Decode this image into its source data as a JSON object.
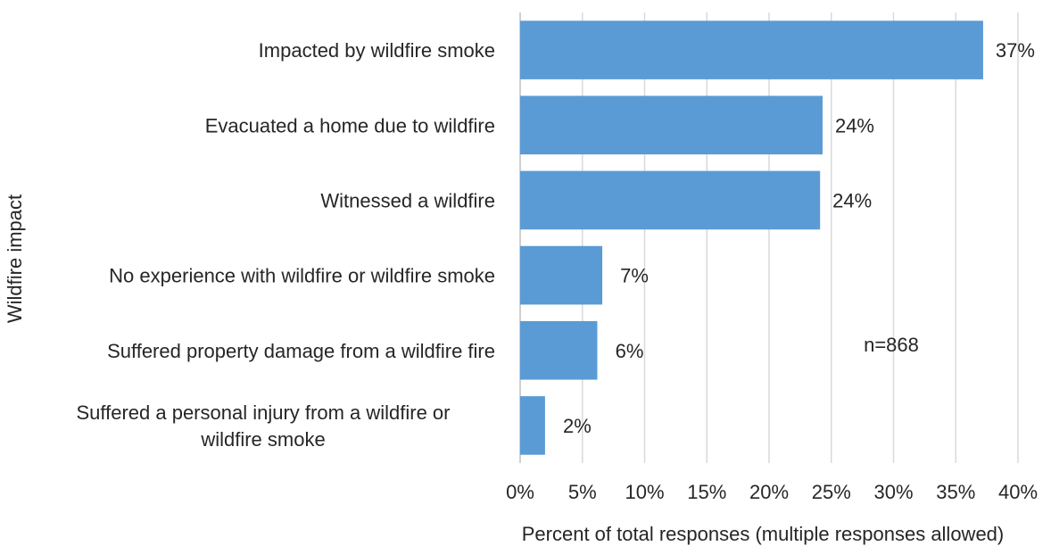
{
  "chart_data": {
    "type": "bar",
    "orientation": "horizontal",
    "categories": [
      "Impacted by wildfire smoke",
      "Evacuated a home due to wildfire",
      "Witnessed a wildfire",
      "No experience with wildfire or wildfire smoke",
      "Suffered property damage from a wildfire fire",
      [
        "Suffered a personal injury from a wildfire or",
        "wildfire smoke"
      ]
    ],
    "values": [
      37.2,
      24.3,
      24.1,
      6.6,
      6.2,
      2.0
    ],
    "data_labels": [
      "37%",
      "24%",
      "24%",
      "7%",
      "6%",
      "2%"
    ],
    "xlabel": "Percent of total responses (multiple responses allowed)",
    "ylabel": "Wildfire impact",
    "x_ticks": [
      "0%",
      "5%",
      "10%",
      "15%",
      "20%",
      "25%",
      "30%",
      "35%",
      "40%"
    ],
    "xlim": [
      0,
      40
    ],
    "grid": true,
    "annotation": "n=868",
    "colors": {
      "bar": "#5b9bd5",
      "grid": "#d9d9d9",
      "text": "#262626"
    }
  }
}
